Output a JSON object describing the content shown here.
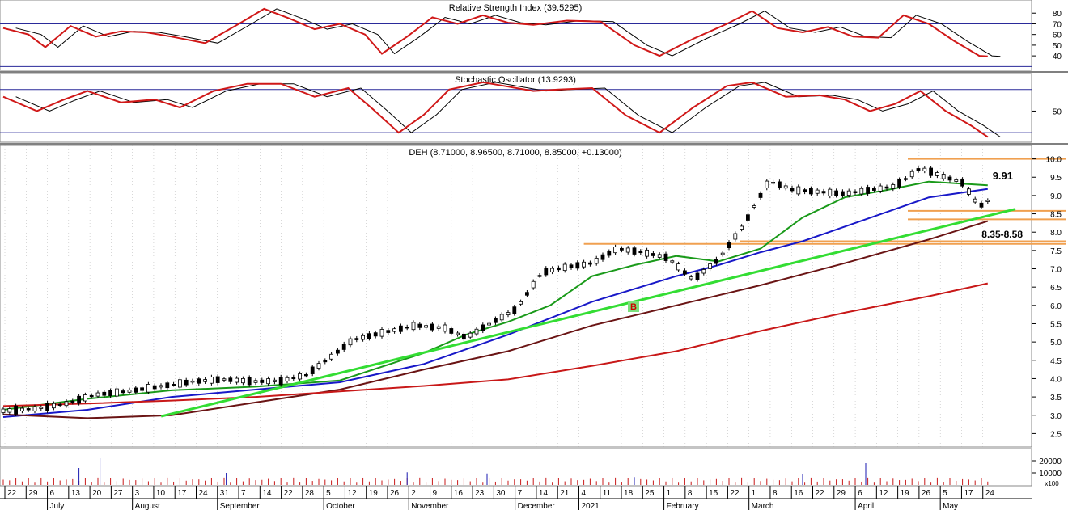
{
  "panels": {
    "rsi": {
      "title": "Relative Strength Index (39.5295)",
      "ticks": [
        "80",
        "70",
        "60",
        "50",
        "40"
      ],
      "tick_values": [
        80,
        70,
        60,
        50,
        40
      ],
      "levels": [
        70,
        30
      ],
      "ylim": [
        28,
        90
      ]
    },
    "stochastic": {
      "title": "Stochastic Oscillator (13.9293)",
      "ticks": [
        "50"
      ],
      "tick_values": [
        50
      ],
      "levels": [
        80,
        20
      ],
      "ylim": [
        10,
        100
      ]
    },
    "price": {
      "title": "DEH (8.71000, 8.96500, 8.71000, 8.85000, +0.13000)",
      "ticks": [
        "10.0",
        "9.5",
        "9.0",
        "8.5",
        "8.0",
        "7.5",
        "7.0",
        "6.5",
        "6.0",
        "5.5",
        "5.0",
        "4.5",
        "4.0",
        "3.5",
        "3.0",
        "2.5"
      ],
      "tick_values": [
        10,
        9.5,
        9,
        8.5,
        8,
        7.5,
        7,
        6.5,
        6,
        5.5,
        5,
        4.5,
        4,
        3.5,
        3,
        2.5
      ],
      "ylim": [
        2.2,
        10.3
      ],
      "annotation_high": "9.91",
      "annotation_range": "8.35-8.58",
      "signal_marker": "B"
    },
    "volume": {
      "ticks": [
        "20000",
        "10000"
      ],
      "tick_values": [
        20000,
        10000
      ],
      "unit_label": "x100",
      "ylim": [
        0,
        28000
      ]
    }
  },
  "x_axis": {
    "day_labels": [
      "22",
      "29",
      "6",
      "13",
      "20",
      "27",
      "3",
      "10",
      "17",
      "24",
      "31",
      "7",
      "14",
      "22",
      "28",
      "5",
      "12",
      "19",
      "26",
      "2",
      "9",
      "16",
      "23",
      "30",
      "7",
      "14",
      "21",
      "4",
      "11",
      "18",
      "25",
      "1",
      "8",
      "15",
      "22",
      "1",
      "8",
      "16",
      "22",
      "29",
      "6",
      "12",
      "19",
      "26",
      "5",
      "17",
      "24"
    ],
    "month_labels": [
      "July",
      "August",
      "September",
      "October",
      "November",
      "December",
      "2021",
      "February",
      "March",
      "April",
      "May"
    ],
    "month_day_index": [
      2,
      6,
      10,
      15,
      19,
      24,
      27,
      31,
      35,
      40,
      44
    ]
  },
  "colors": {
    "rsi_line": "#d01818",
    "signal_line": "#000000",
    "ma_short": "#1a9a1a",
    "ma_mid": "#1818c8",
    "ma_long": "#6a1414",
    "ma_longest": "#c81818",
    "trendline": "#33dd33",
    "resistance": "#f0a050",
    "annotation": "#1a1ab0",
    "volume": "#c81818",
    "grid": "#b0b0b0"
  },
  "chart_data": {
    "type": "line",
    "title": "DEH (8.71000, 8.96500, 8.71000, 8.85000, +0.13000)",
    "x_label_reference": "trading day index 0-190",
    "price_path": [
      [
        0,
        3.12
      ],
      [
        8,
        3.18
      ],
      [
        15,
        3.32
      ],
      [
        22,
        3.56
      ],
      [
        30,
        3.66
      ],
      [
        38,
        3.8
      ],
      [
        45,
        3.92
      ],
      [
        52,
        3.98
      ],
      [
        60,
        3.92
      ],
      [
        66,
        3.94
      ],
      [
        72,
        4.1
      ],
      [
        78,
        4.6
      ],
      [
        83,
        5.05
      ],
      [
        90,
        5.25
      ],
      [
        98,
        5.45
      ],
      [
        105,
        5.38
      ],
      [
        110,
        5.12
      ],
      [
        116,
        5.52
      ],
      [
        122,
        5.9
      ],
      [
        128,
        6.9
      ],
      [
        134,
        7.05
      ],
      [
        140,
        7.15
      ],
      [
        146,
        7.55
      ],
      [
        152,
        7.45
      ],
      [
        158,
        7.3
      ],
      [
        164,
        6.7
      ],
      [
        170,
        7.25
      ],
      [
        176,
        8.2
      ],
      [
        182,
        9.4
      ],
      [
        188,
        9.15
      ],
      [
        194,
        9.1
      ],
      [
        200,
        9.05
      ],
      [
        206,
        9.15
      ],
      [
        212,
        9.25
      ],
      [
        218,
        9.75
      ],
      [
        224,
        9.5
      ],
      [
        228,
        9.35
      ],
      [
        232,
        8.7
      ],
      [
        234,
        8.85
      ]
    ],
    "series": [
      {
        "name": "moving average (green)",
        "x": [
          0,
          20,
          40,
          60,
          80,
          100,
          110,
          120,
          130,
          140,
          150,
          160,
          170,
          180,
          190,
          200,
          210,
          220,
          234
        ],
        "values": [
          3.15,
          3.45,
          3.68,
          3.78,
          3.95,
          4.7,
          5.2,
          5.55,
          6.0,
          6.8,
          7.1,
          7.35,
          7.2,
          7.55,
          8.4,
          8.95,
          9.15,
          9.38,
          9.28
        ]
      },
      {
        "name": "moving average (blue)",
        "x": [
          0,
          20,
          40,
          60,
          80,
          100,
          120,
          140,
          160,
          170,
          180,
          190,
          200,
          210,
          220,
          234
        ],
        "values": [
          2.95,
          3.15,
          3.5,
          3.7,
          3.9,
          4.4,
          5.2,
          6.1,
          6.8,
          7.1,
          7.45,
          7.75,
          8.15,
          8.55,
          8.95,
          9.18
        ]
      },
      {
        "name": "moving average (dark red)",
        "x": [
          0,
          20,
          40,
          60,
          80,
          100,
          120,
          140,
          160,
          180,
          200,
          220,
          234
        ],
        "values": [
          3.02,
          2.92,
          3.0,
          3.35,
          3.7,
          4.25,
          4.75,
          5.45,
          6.0,
          6.55,
          7.15,
          7.8,
          8.3
        ]
      },
      {
        "name": "moving average (red)",
        "x": [
          0,
          20,
          40,
          60,
          80,
          100,
          120,
          140,
          160,
          180,
          200,
          220,
          234
        ],
        "values": [
          3.25,
          3.32,
          3.4,
          3.5,
          3.65,
          3.8,
          3.98,
          4.35,
          4.75,
          5.3,
          5.8,
          6.25,
          6.6
        ]
      }
    ],
    "trendline": {
      "x": [
        36,
        290
      ],
      "values": [
        2.75,
        8.63
      ]
    },
    "resistance_levels": [
      {
        "value": 10.0,
        "x_start": 215,
        "x_end": 290
      },
      {
        "value": 8.58,
        "x_start": 215,
        "x_end": 290
      },
      {
        "value": 8.35,
        "x_start": 215,
        "x_end": 290
      },
      {
        "value": 7.68,
        "x_start": 138,
        "x_end": 290
      },
      {
        "value": 7.75,
        "x_start": 175,
        "x_end": 290
      }
    ],
    "rsi_path": [
      [
        0,
        66
      ],
      [
        6,
        60
      ],
      [
        10,
        48
      ],
      [
        16,
        68
      ],
      [
        22,
        58
      ],
      [
        28,
        63
      ],
      [
        34,
        62
      ],
      [
        40,
        58
      ],
      [
        48,
        52
      ],
      [
        56,
        70
      ],
      [
        62,
        84
      ],
      [
        68,
        75
      ],
      [
        74,
        65
      ],
      [
        80,
        70
      ],
      [
        86,
        60
      ],
      [
        90,
        42
      ],
      [
        96,
        58
      ],
      [
        102,
        76
      ],
      [
        108,
        70
      ],
      [
        114,
        78
      ],
      [
        120,
        71
      ],
      [
        126,
        69
      ],
      [
        134,
        73
      ],
      [
        142,
        72
      ],
      [
        150,
        50
      ],
      [
        156,
        40
      ],
      [
        164,
        56
      ],
      [
        172,
        70
      ],
      [
        178,
        82
      ],
      [
        184,
        66
      ],
      [
        190,
        62
      ],
      [
        196,
        67
      ],
      [
        202,
        58
      ],
      [
        208,
        57
      ],
      [
        214,
        78
      ],
      [
        220,
        70
      ],
      [
        226,
        54
      ],
      [
        232,
        40
      ],
      [
        234,
        39.5
      ]
    ],
    "stochastic_path": [
      [
        0,
        70
      ],
      [
        8,
        50
      ],
      [
        14,
        65
      ],
      [
        20,
        78
      ],
      [
        28,
        62
      ],
      [
        36,
        66
      ],
      [
        42,
        55
      ],
      [
        50,
        78
      ],
      [
        58,
        88
      ],
      [
        66,
        88
      ],
      [
        74,
        70
      ],
      [
        82,
        82
      ],
      [
        88,
        52
      ],
      [
        94,
        20
      ],
      [
        100,
        45
      ],
      [
        106,
        80
      ],
      [
        114,
        90
      ],
      [
        120,
        84
      ],
      [
        126,
        78
      ],
      [
        132,
        80
      ],
      [
        140,
        82
      ],
      [
        148,
        44
      ],
      [
        156,
        20
      ],
      [
        164,
        55
      ],
      [
        172,
        85
      ],
      [
        178,
        90
      ],
      [
        186,
        70
      ],
      [
        194,
        72
      ],
      [
        200,
        66
      ],
      [
        206,
        50
      ],
      [
        212,
        60
      ],
      [
        218,
        78
      ],
      [
        224,
        50
      ],
      [
        230,
        30
      ],
      [
        234,
        13.9
      ]
    ],
    "volume_spikes": [
      [
        18,
        14000
      ],
      [
        23,
        22000
      ],
      [
        53,
        10000
      ],
      [
        96,
        10500
      ],
      [
        115,
        9500
      ],
      [
        150,
        6500
      ],
      [
        190,
        9000
      ],
      [
        205,
        18000
      ]
    ]
  }
}
